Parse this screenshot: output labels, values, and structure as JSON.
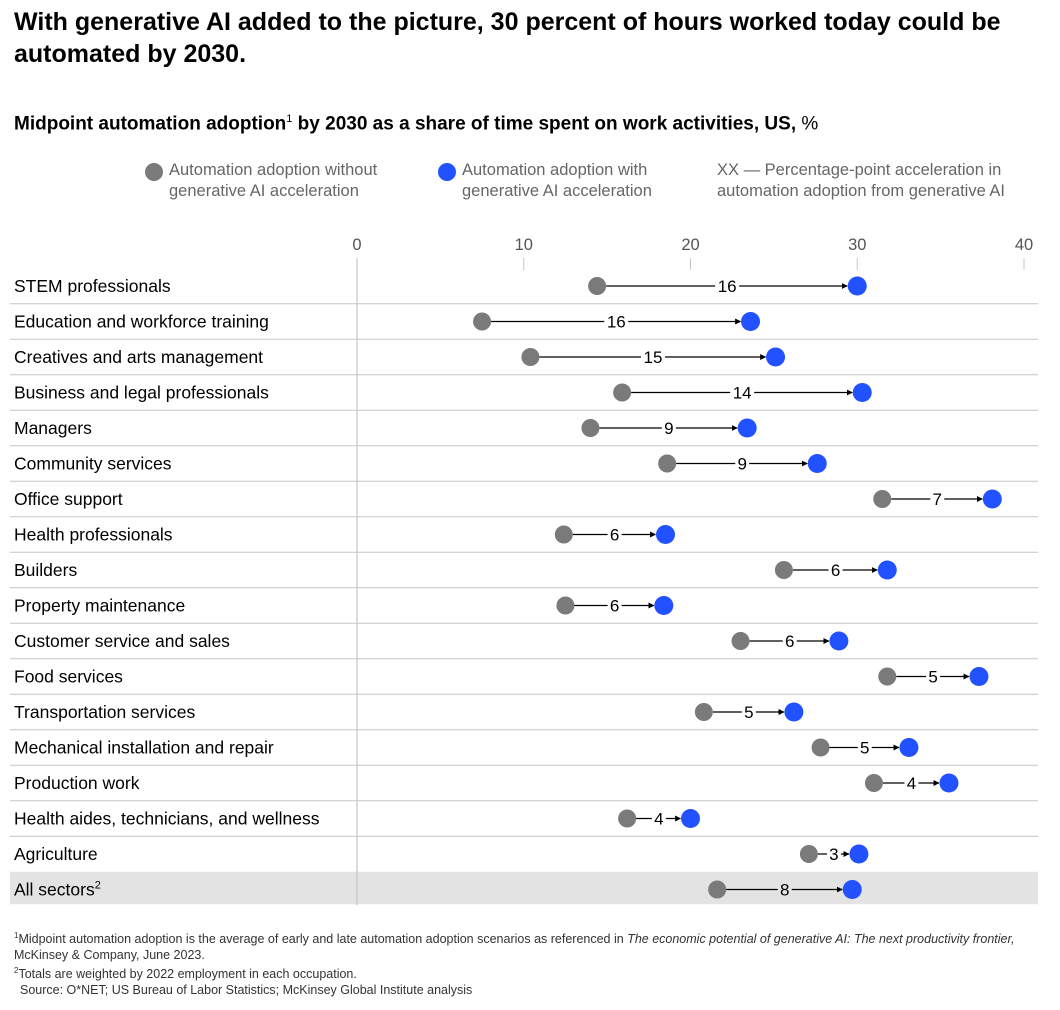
{
  "title": "With generative AI added to the picture, 30 percent of hours worked today could be automated by 2030.",
  "subtitle": {
    "bold_part": "Midpoint automation adoption",
    "sup": "1",
    "bold_rest": " by 2030 as a share of time spent on work activities, US,",
    "unit": " %"
  },
  "legend": {
    "without": "Automation adoption without\ngenerative AI acceleration",
    "with": "Automation adoption with\ngenerative AI acceleration",
    "note": "XX — Percentage-point acceleration in\nautomation adoption from generative AI"
  },
  "colors": {
    "without": "#7a7a7a",
    "with": "#2251ff",
    "highlight": "#e3e3e3",
    "grid": "#c6c6c6"
  },
  "chart_data": {
    "type": "dumbbell",
    "title": "Midpoint automation adoption by 2030 as a share of time spent on work activities, US, %",
    "xlim": [
      0,
      40
    ],
    "xticks": [
      0,
      10,
      20,
      30,
      40
    ],
    "series_names": [
      "Automation adoption without generative AI acceleration",
      "Automation adoption with generative AI acceleration"
    ],
    "rows": [
      {
        "label": "STEM professionals",
        "sup": "",
        "without": 14.4,
        "with": 30.0,
        "delta": "16"
      },
      {
        "label": "Education and workforce training",
        "sup": "",
        "without": 7.5,
        "with": 23.6,
        "delta": "16"
      },
      {
        "label": "Creatives and arts management",
        "sup": "",
        "without": 10.4,
        "with": 25.1,
        "delta": "15"
      },
      {
        "label": "Business and legal professionals",
        "sup": "",
        "without": 15.9,
        "with": 30.3,
        "delta": "14"
      },
      {
        "label": "Managers",
        "sup": "",
        "without": 14.0,
        "with": 23.4,
        "delta": "9"
      },
      {
        "label": "Community services",
        "sup": "",
        "without": 18.6,
        "with": 27.6,
        "delta": "9"
      },
      {
        "label": "Office support",
        "sup": "",
        "without": 31.5,
        "with": 38.1,
        "delta": "7"
      },
      {
        "label": "Health professionals",
        "sup": "",
        "without": 12.4,
        "with": 18.5,
        "delta": "6"
      },
      {
        "label": "Builders",
        "sup": "",
        "without": 25.6,
        "with": 31.8,
        "delta": "6"
      },
      {
        "label": "Property maintenance",
        "sup": "",
        "without": 12.5,
        "with": 18.4,
        "delta": "6"
      },
      {
        "label": "Customer service and sales",
        "sup": "",
        "without": 23.0,
        "with": 28.9,
        "delta": "6"
      },
      {
        "label": "Food services",
        "sup": "",
        "without": 31.8,
        "with": 37.3,
        "delta": "5"
      },
      {
        "label": "Transportation services",
        "sup": "",
        "without": 20.8,
        "with": 26.2,
        "delta": "5"
      },
      {
        "label": "Mechanical installation and repair",
        "sup": "",
        "without": 27.8,
        "with": 33.1,
        "delta": "5"
      },
      {
        "label": "Production work",
        "sup": "",
        "without": 31.0,
        "with": 35.5,
        "delta": "4"
      },
      {
        "label": "Health aides, technicians, and wellness",
        "sup": "",
        "without": 16.2,
        "with": 20.0,
        "delta": "4"
      },
      {
        "label": "Agriculture",
        "sup": "",
        "without": 27.1,
        "with": 30.1,
        "delta": "3"
      },
      {
        "label": "All sectors",
        "sup": "2",
        "without": 21.6,
        "with": 29.7,
        "delta": "8",
        "highlight": true
      }
    ]
  },
  "footnotes": {
    "n1_sup": "1",
    "n1_text": "Midpoint automation adoption is the average of early and late automation adoption scenarios as referenced in ",
    "n1_italic": "The economic potential of generative AI: The next productivity frontier,",
    "n1_end": " McKinsey & Company, June 2023.",
    "n2_sup": "2",
    "n2_text": "Totals are weighted by 2022 employment in each occupation.",
    "source": "Source: O*NET; US Bureau of Labor Statistics; McKinsey Global Institute analysis"
  }
}
